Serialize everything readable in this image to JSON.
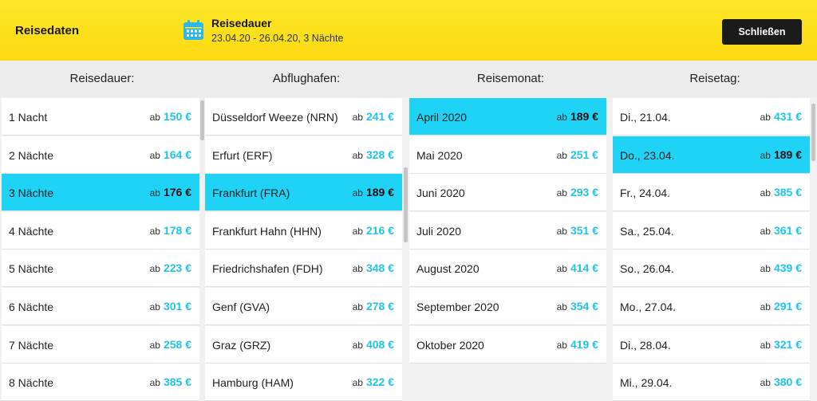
{
  "header": {
    "title": "Reisedaten",
    "duration_label": "Reisedauer",
    "duration_value": "23.04.20 - 26.04.20,  3 Nächte",
    "close_label": "Schließen",
    "icon": "calendar-icon"
  },
  "colors": {
    "header_yellow": "#fde727",
    "accent_blue": "#1fd3f6",
    "price_blue": "#1ec4ec",
    "button_dark": "#1b1b1b"
  },
  "columns": [
    {
      "heading": "Reisedauer:",
      "items": [
        {
          "name": "1 Nacht",
          "ab": "ab",
          "price": "150 €",
          "selected": false
        },
        {
          "name": "2 Nächte",
          "ab": "ab",
          "price": "164 €",
          "selected": false
        },
        {
          "name": "3 Nächte",
          "ab": "ab",
          "price": "176 €",
          "selected": true
        },
        {
          "name": "4 Nächte",
          "ab": "ab",
          "price": "178 €",
          "selected": false
        },
        {
          "name": "5 Nächte",
          "ab": "ab",
          "price": "223 €",
          "selected": false
        },
        {
          "name": "6 Nächte",
          "ab": "ab",
          "price": "301 €",
          "selected": false
        },
        {
          "name": "7 Nächte",
          "ab": "ab",
          "price": "258 €",
          "selected": false
        },
        {
          "name": "8 Nächte",
          "ab": "ab",
          "price": "385 €",
          "selected": false
        }
      ]
    },
    {
      "heading": "Abflughafen:",
      "items": [
        {
          "name": "Düsseldorf Weeze (NRN)",
          "ab": "ab",
          "price": "241 €",
          "selected": false
        },
        {
          "name": "Erfurt (ERF)",
          "ab": "ab",
          "price": "328 €",
          "selected": false
        },
        {
          "name": "Frankfurt (FRA)",
          "ab": "ab",
          "price": "189 €",
          "selected": true
        },
        {
          "name": "Frankfurt Hahn (HHN)",
          "ab": "ab",
          "price": "216 €",
          "selected": false
        },
        {
          "name": "Friedrichshafen (FDH)",
          "ab": "ab",
          "price": "348 €",
          "selected": false
        },
        {
          "name": "Genf (GVA)",
          "ab": "ab",
          "price": "278 €",
          "selected": false
        },
        {
          "name": "Graz (GRZ)",
          "ab": "ab",
          "price": "408 €",
          "selected": false
        },
        {
          "name": "Hamburg (HAM)",
          "ab": "ab",
          "price": "322 €",
          "selected": false
        }
      ]
    },
    {
      "heading": "Reisemonat:",
      "items": [
        {
          "name": "April 2020",
          "ab": "ab",
          "price": "189 €",
          "selected": true
        },
        {
          "name": "Mai 2020",
          "ab": "ab",
          "price": "251 €",
          "selected": false
        },
        {
          "name": "Juni 2020",
          "ab": "ab",
          "price": "293 €",
          "selected": false
        },
        {
          "name": "Juli 2020",
          "ab": "ab",
          "price": "351 €",
          "selected": false
        },
        {
          "name": "August 2020",
          "ab": "ab",
          "price": "414 €",
          "selected": false
        },
        {
          "name": "September 2020",
          "ab": "ab",
          "price": "354 €",
          "selected": false
        },
        {
          "name": "Oktober 2020",
          "ab": "ab",
          "price": "419 €",
          "selected": false
        }
      ]
    },
    {
      "heading": "Reisetag:",
      "items": [
        {
          "name": "Di., 21.04.",
          "ab": "ab",
          "price": "431 €",
          "selected": false
        },
        {
          "name": "Do., 23.04.",
          "ab": "ab",
          "price": "189 €",
          "selected": true
        },
        {
          "name": "Fr., 24.04.",
          "ab": "ab",
          "price": "385 €",
          "selected": false
        },
        {
          "name": "Sa., 25.04.",
          "ab": "ab",
          "price": "361 €",
          "selected": false
        },
        {
          "name": "So., 26.04.",
          "ab": "ab",
          "price": "439 €",
          "selected": false
        },
        {
          "name": "Mo., 27.04.",
          "ab": "ab",
          "price": "291 €",
          "selected": false
        },
        {
          "name": "Di., 28.04.",
          "ab": "ab",
          "price": "321 €",
          "selected": false
        },
        {
          "name": "Mi., 29.04.",
          "ab": "ab",
          "price": "380 €",
          "selected": false
        }
      ]
    }
  ]
}
